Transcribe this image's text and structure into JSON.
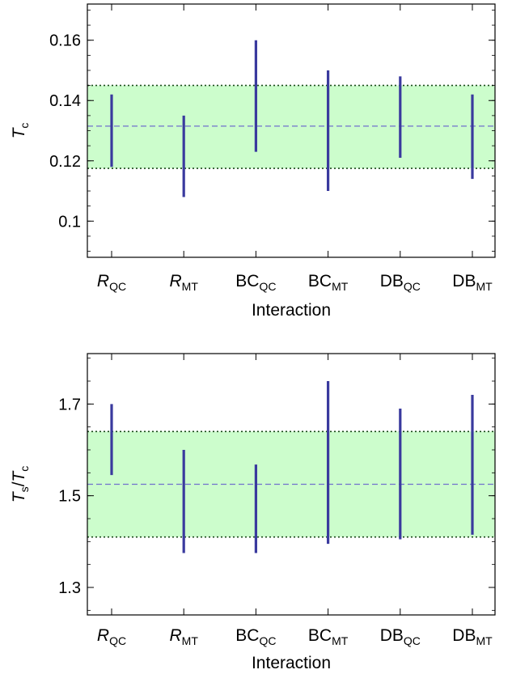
{
  "chart_data": [
    {
      "type": "errorbar",
      "ylabel": {
        "base": "T",
        "sub": "c"
      },
      "xlabel": "Interaction",
      "ylim": [
        0.088,
        0.172
      ],
      "yticks": [
        0.1,
        0.12,
        0.14,
        0.16
      ],
      "ytick_labels": [
        "0.1",
        "0.12",
        "0.14",
        "0.16"
      ],
      "categories": [
        {
          "base": "R",
          "sub": "QC",
          "italic": true
        },
        {
          "base": "R",
          "sub": "MT",
          "italic": true
        },
        {
          "base": "BC",
          "sub": "QC",
          "italic": false
        },
        {
          "base": "BC",
          "sub": "MT",
          "italic": false
        },
        {
          "base": "DB",
          "sub": "QC",
          "italic": false
        },
        {
          "base": "DB",
          "sub": "MT",
          "italic": false
        }
      ],
      "intervals": [
        [
          0.118,
          0.142
        ],
        [
          0.108,
          0.135
        ],
        [
          0.123,
          0.16
        ],
        [
          0.11,
          0.15
        ],
        [
          0.121,
          0.148
        ],
        [
          0.114,
          0.142
        ]
      ],
      "band": {
        "low": 0.1175,
        "high": 0.145,
        "center": 0.1315
      },
      "colors": {
        "bar": "#3a3a9e",
        "band_fill": "#ccfdcc",
        "band_edge": "#1a4a1a",
        "center_line": "#7070cc"
      }
    },
    {
      "type": "errorbar",
      "ylabel": {
        "base": "T",
        "sub": "s",
        "slash": "/",
        "base2": "T",
        "sub2": "c"
      },
      "xlabel": "Interaction",
      "ylim": [
        1.24,
        1.81
      ],
      "yticks": [
        1.3,
        1.5,
        1.7
      ],
      "ytick_labels": [
        "1.3",
        "1.5",
        "1.7"
      ],
      "categories": [
        {
          "base": "R",
          "sub": "QC",
          "italic": true
        },
        {
          "base": "R",
          "sub": "MT",
          "italic": true
        },
        {
          "base": "BC",
          "sub": "QC",
          "italic": false
        },
        {
          "base": "BC",
          "sub": "MT",
          "italic": false
        },
        {
          "base": "DB",
          "sub": "QC",
          "italic": false
        },
        {
          "base": "DB",
          "sub": "MT",
          "italic": false
        }
      ],
      "intervals": [
        [
          1.545,
          1.7
        ],
        [
          1.375,
          1.6
        ],
        [
          1.375,
          1.568
        ],
        [
          1.395,
          1.75
        ],
        [
          1.405,
          1.69
        ],
        [
          1.415,
          1.72
        ]
      ],
      "band": {
        "low": 1.41,
        "high": 1.64,
        "center": 1.525
      },
      "colors": {
        "bar": "#3a3a9e",
        "band_fill": "#ccfdcc",
        "band_edge": "#1a4a1a",
        "center_line": "#7070cc"
      }
    }
  ]
}
